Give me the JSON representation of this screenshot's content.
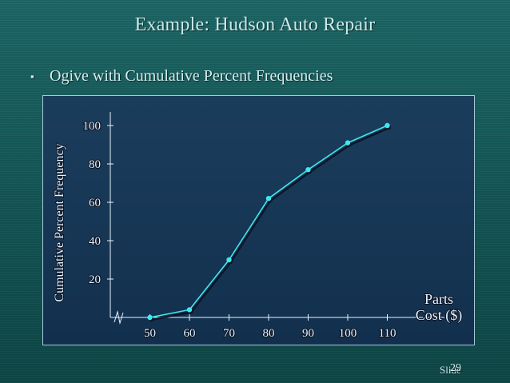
{
  "slide": {
    "title": "Example:  Hudson Auto Repair",
    "bullet": "Ogive with Cumulative Percent Frequencies",
    "bullet_marker": "▪",
    "footer_label": "Slide",
    "footer_number": "29"
  },
  "colors": {
    "background": "#155858",
    "panel": "#16385a",
    "line": "#3fe7f0",
    "shadow": "#0a1020",
    "axis": "#eaf4ff",
    "text": "#d6ecec"
  },
  "chart_data": {
    "type": "line",
    "title": "",
    "xlabel": "Parts Cost ($)",
    "xlabel_lines": [
      "Parts",
      "Cost ($)"
    ],
    "ylabel": "Cumulative Percent Frequency",
    "x_ticks": [
      "50",
      "60",
      "70",
      "80",
      "90",
      "100",
      "110"
    ],
    "y_ticks": [
      "20",
      "40",
      "60",
      "80",
      "100"
    ],
    "xlim": [
      40,
      120
    ],
    "ylim": [
      0,
      100
    ],
    "axis_break": true,
    "grid": false,
    "x": [
      50,
      60,
      70,
      80,
      90,
      100,
      110
    ],
    "series": [
      {
        "values": [
          0,
          4,
          30,
          62,
          77,
          91,
          100
        ]
      }
    ]
  }
}
